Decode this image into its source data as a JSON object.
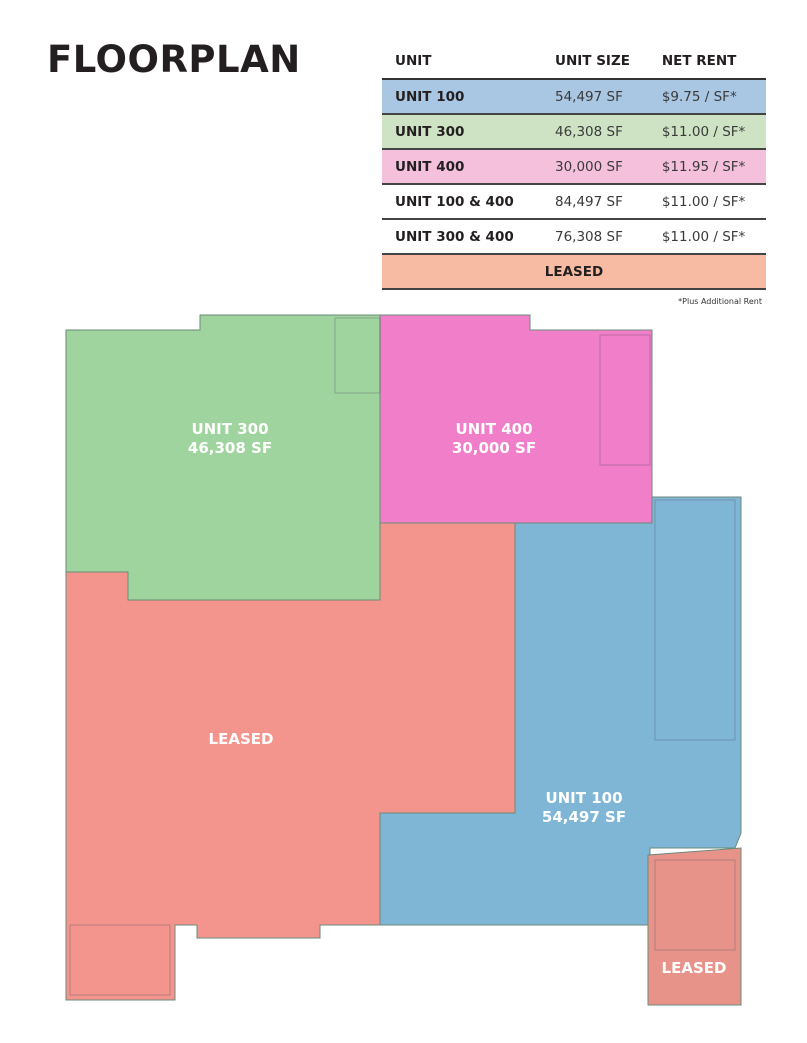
{
  "title": "FLOORPLAN",
  "table": {
    "headers": [
      "UNIT",
      "UNIT SIZE",
      "NET RENT"
    ],
    "rows": [
      {
        "unit": "UNIT 100",
        "size": "54,497 SF",
        "rent": "$9.75 / SF*",
        "color": "#a9c7e3"
      },
      {
        "unit": "UNIT 300",
        "size": "46,308 SF",
        "rent": "$11.00 / SF*",
        "color": "#cde3c3"
      },
      {
        "unit": "UNIT 400",
        "size": "30,000 SF",
        "rent": "$11.95 / SF*",
        "color": "#f5c0dc"
      },
      {
        "unit": "UNIT 100 & 400",
        "size": "84,497 SF",
        "rent": "$11.00 / SF*",
        "color": "#ffffff"
      },
      {
        "unit": "UNIT 300 & 400",
        "size": "76,308 SF",
        "rent": "$11.00 / SF*",
        "color": "#ffffff"
      }
    ],
    "leased": {
      "label": "LEASED",
      "color": "#f7bba3"
    },
    "footnote": "*Plus Additional Rent"
  },
  "floorplan": {
    "unit300": {
      "name": "UNIT 300",
      "size": "46,308 SF",
      "color": "#9fd49e"
    },
    "unit400": {
      "name": "UNIT 400",
      "size": "30,000 SF",
      "color": "#f17ec8"
    },
    "unit100": {
      "name": "UNIT 100",
      "size": "54,497 SF",
      "color": "#7fb6d6"
    },
    "leased_main": {
      "name": "LEASED",
      "color": "#f3958c"
    },
    "leased_small": {
      "name": "LEASED",
      "color": "#e8938a"
    }
  }
}
